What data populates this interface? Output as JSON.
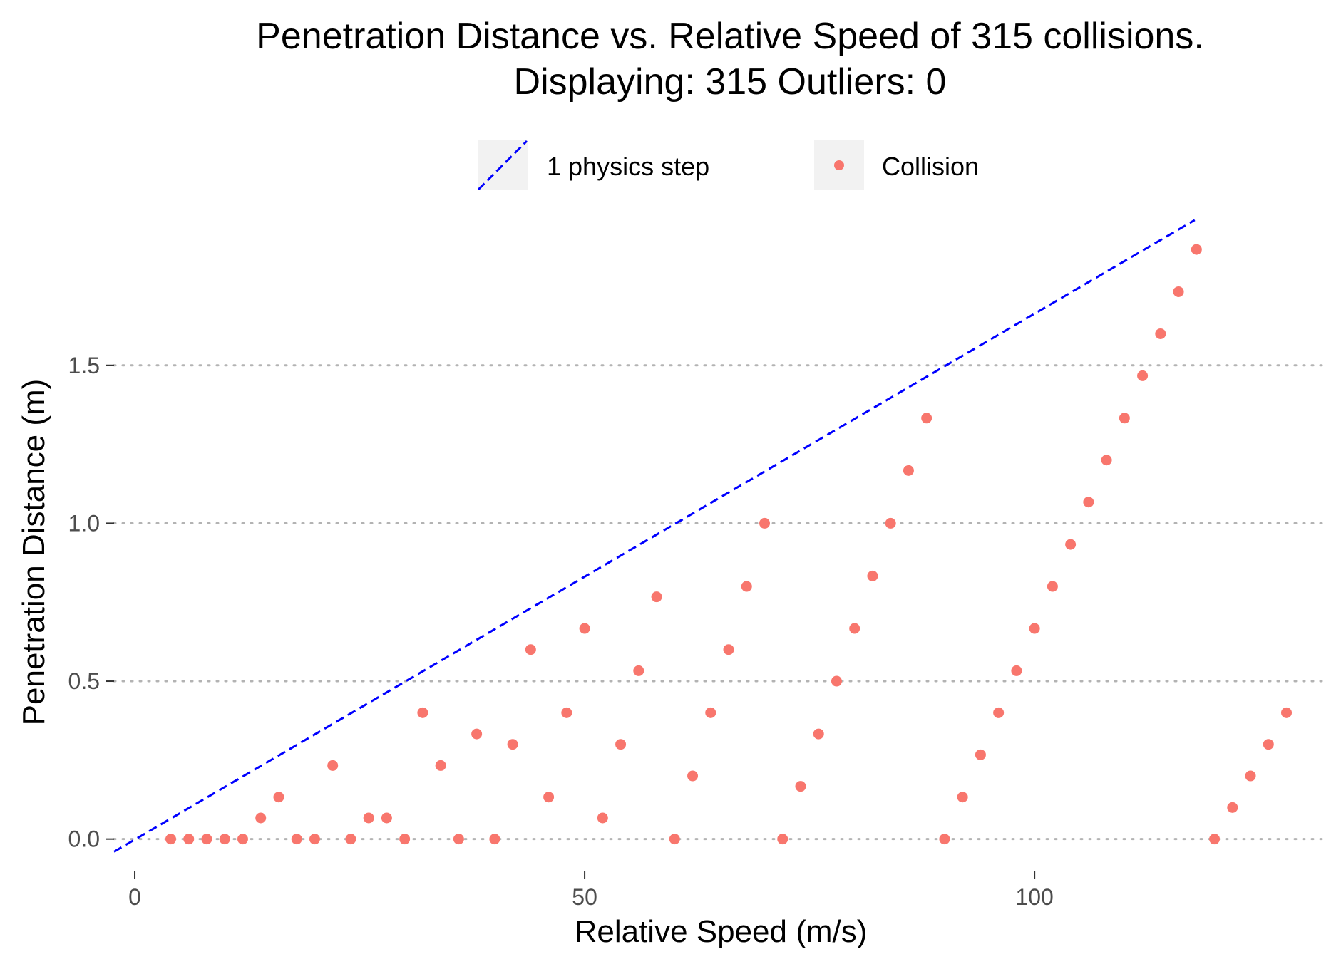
{
  "chart_data": {
    "type": "scatter",
    "title": "Penetration Distance vs. Relative Speed of 315 collisions.",
    "subtitle": "Displaying: 315 Outliers: 0",
    "xlabel": "Relative Speed (m/s)",
    "ylabel": "Penetration Distance (m)",
    "xlim": [
      -2.3,
      132
    ],
    "ylim": [
      -0.1,
      1.98
    ],
    "xticks": [
      0,
      50,
      100
    ],
    "xtick_labels": [
      "0",
      "50",
      "100"
    ],
    "yticks": [
      0.0,
      0.5,
      1.0,
      1.5
    ],
    "ytick_labels": [
      "0.0",
      "0.5",
      "1.0",
      "1.5"
    ],
    "grid": "horizontal-dotted",
    "legend_position": "top",
    "legend": [
      {
        "label": "1 physics step",
        "kind": "dashed-line",
        "color": "#0000ff"
      },
      {
        "label": "Collision",
        "kind": "point",
        "color": "#f8766d"
      }
    ],
    "series": [
      {
        "name": "1 physics step",
        "kind": "line",
        "style": "dashed",
        "color": "#0000ff",
        "x": [
          -2.3,
          117.8
        ],
        "y": [
          -0.04,
          1.96
        ]
      },
      {
        "name": "Collision",
        "kind": "points",
        "color": "#f8766d",
        "points": [
          [
            4,
            0
          ],
          [
            6,
            0
          ],
          [
            8,
            0
          ],
          [
            10,
            0
          ],
          [
            12,
            0
          ],
          [
            14,
            0.067
          ],
          [
            16,
            0.133
          ],
          [
            18,
            0
          ],
          [
            20,
            0
          ],
          [
            22,
            0.233
          ],
          [
            24,
            0
          ],
          [
            26,
            0.067
          ],
          [
            28,
            0.067
          ],
          [
            30,
            0
          ],
          [
            32,
            0.4
          ],
          [
            34,
            0.233
          ],
          [
            36,
            0
          ],
          [
            38,
            0.333
          ],
          [
            40,
            0
          ],
          [
            42,
            0.3
          ],
          [
            44,
            0.6
          ],
          [
            46,
            0.133
          ],
          [
            48,
            0.4
          ],
          [
            50,
            0.667
          ],
          [
            52,
            0.067
          ],
          [
            54,
            0.3
          ],
          [
            56,
            0.533
          ],
          [
            58,
            0.767
          ],
          [
            60,
            0
          ],
          [
            62,
            0.2
          ],
          [
            64,
            0.4
          ],
          [
            66,
            0.6
          ],
          [
            68,
            0.8
          ],
          [
            70,
            1.0
          ],
          [
            72,
            0
          ],
          [
            74,
            0.167
          ],
          [
            76,
            0.333
          ],
          [
            78,
            0.5
          ],
          [
            80,
            0.667
          ],
          [
            82,
            0.833
          ],
          [
            84,
            1.0
          ],
          [
            86,
            1.167
          ],
          [
            88,
            1.333
          ],
          [
            90,
            0
          ],
          [
            92,
            0.133
          ],
          [
            94,
            0.267
          ],
          [
            96,
            0.4
          ],
          [
            98,
            0.533
          ],
          [
            100,
            0.667
          ],
          [
            102,
            0.8
          ],
          [
            104,
            0.933
          ],
          [
            106,
            1.067
          ],
          [
            108,
            1.2
          ],
          [
            110,
            1.333
          ],
          [
            112,
            1.467
          ],
          [
            114,
            1.6
          ],
          [
            116,
            1.733
          ],
          [
            118,
            1.867
          ],
          [
            120,
            0
          ],
          [
            122,
            0.1
          ],
          [
            124,
            0.2
          ],
          [
            126,
            0.3
          ],
          [
            128,
            0.4
          ]
        ]
      }
    ]
  }
}
